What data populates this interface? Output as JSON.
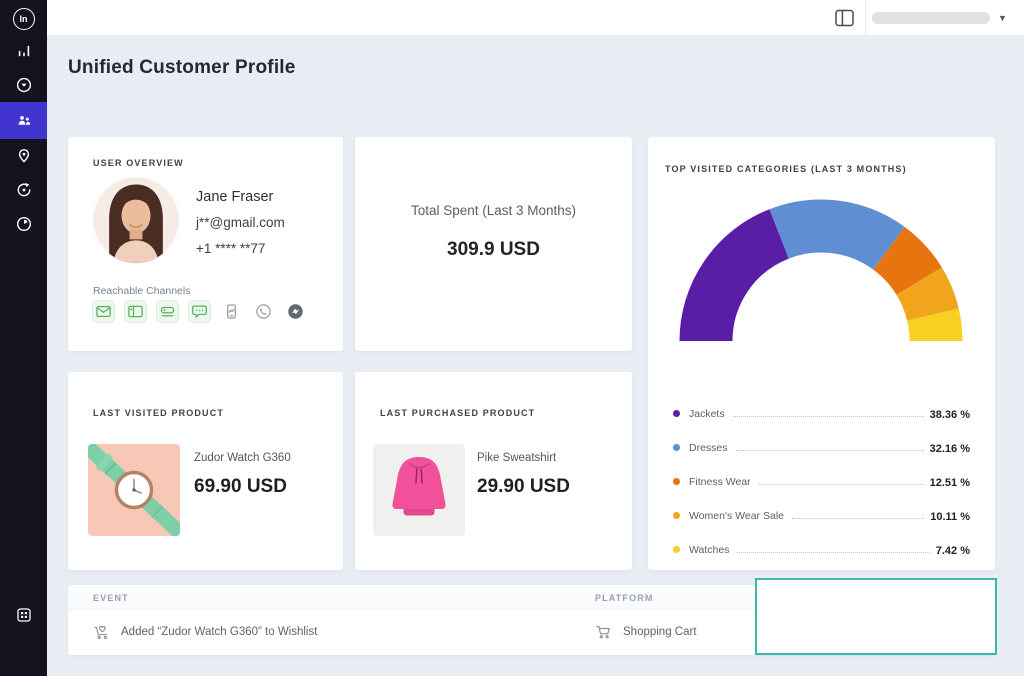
{
  "theme": {
    "accent": "#4134cf",
    "sidebar_bg": "#131320",
    "content_bg": "#e7edf3",
    "highlight_teal": "#3ab8a8",
    "channel_active_green": "#58b15e"
  },
  "sidebar": {
    "logo_text": "In",
    "items": [
      {
        "icon": "bar-chart-icon",
        "active": false
      },
      {
        "icon": "audience-target-icon",
        "active": false
      },
      {
        "icon": "customers-icon",
        "active": true
      },
      {
        "icon": "location-pin-icon",
        "active": false
      },
      {
        "icon": "sync-icon",
        "active": false
      },
      {
        "icon": "history-clock-icon",
        "active": false
      }
    ],
    "bottom_icon": "grid-apps-icon"
  },
  "page": {
    "title": "Unified Customer Profile"
  },
  "cards": {
    "user_overview": {
      "label": "USER OVERVIEW",
      "name": "Jane Fraser",
      "email": "j**@gmail.com",
      "phone": "+1 **** **77",
      "channels_label": "Reachable Channels",
      "channels": [
        {
          "icon": "email-icon",
          "active": true
        },
        {
          "icon": "web-push-icon",
          "active": true
        },
        {
          "icon": "app-push-icon",
          "active": true
        },
        {
          "icon": "sms-icon",
          "active": true
        },
        {
          "icon": "mobile-app-icon",
          "active": false
        },
        {
          "icon": "whatsapp-icon",
          "active": false
        },
        {
          "icon": "messenger-icon",
          "active": false,
          "dark": true
        }
      ]
    },
    "total_spent": {
      "label": "Total Spent (Last 3 Months)",
      "value": "309.9 USD"
    },
    "last_visited": {
      "label": "LAST VISITED PRODUCT",
      "product": "Zudor Watch G360",
      "price": "69.90 USD",
      "image": "watch-product-image"
    },
    "last_purchased": {
      "label": "LAST PURCHASED PRODUCT",
      "product": "Pike Sweatshirt",
      "price": "29.90 USD",
      "image": "hoodie-product-image"
    },
    "events": {
      "columns": [
        "EVENT",
        "PLATFORM"
      ],
      "rows": [
        {
          "event": "Added “Zudor Watch G360” to Wishlist",
          "event_icon": "wishlist-cart-icon",
          "platform": "Shopping Cart",
          "platform_icon": "shopping-cart-icon"
        }
      ]
    }
  },
  "chart_data": {
    "type": "pie",
    "variant": "half-donut-gauge",
    "title": "TOP VISITED CATEGORIES (LAST 3 MONTHS)",
    "categories": [
      "Jackets",
      "Dresses",
      "Fitness Wear",
      "Women's Wear Sale",
      "Watches"
    ],
    "values": [
      38.36,
      32.16,
      12.51,
      10.11,
      7.42
    ],
    "unit": "%",
    "colors": [
      "#5a1ea6",
      "#5f8fd2",
      "#e87410",
      "#f0a51d",
      "#f8d021"
    ],
    "legend_position": "bottom",
    "grid": false
  }
}
